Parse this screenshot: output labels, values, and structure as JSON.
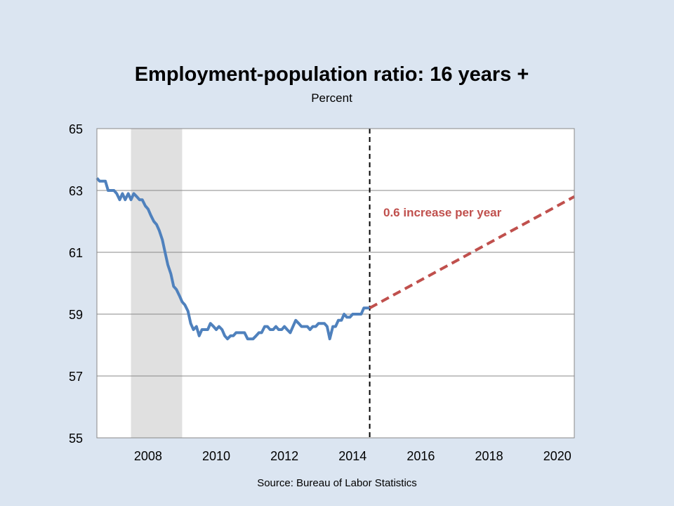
{
  "chart_data": {
    "type": "line",
    "title": "Employment-population ratio: 16 years +",
    "subtitle": "Percent",
    "source": "Source: Bureau of Labor Statistics",
    "xlim": [
      2006.5,
      2020.5
    ],
    "ylim": [
      55,
      65
    ],
    "x_ticks": [
      2008,
      2010,
      2012,
      2014,
      2016,
      2018,
      2020
    ],
    "y_ticks": [
      55,
      57,
      59,
      61,
      63,
      65
    ],
    "grid": "horizontal",
    "recession_shade": {
      "start": 2007.5,
      "end": 2009.0
    },
    "vline": {
      "x": 2014.5
    },
    "series": [
      {
        "color": "#4f81bd",
        "style": "solid",
        "x": [
          2006.5,
          2006.58,
          2006.67,
          2006.75,
          2006.83,
          2006.92,
          2007.0,
          2007.08,
          2007.17,
          2007.25,
          2007.33,
          2007.42,
          2007.5,
          2007.58,
          2007.67,
          2007.75,
          2007.83,
          2007.92,
          2008.0,
          2008.08,
          2008.17,
          2008.25,
          2008.33,
          2008.42,
          2008.5,
          2008.58,
          2008.67,
          2008.75,
          2008.83,
          2008.92,
          2009.0,
          2009.08,
          2009.17,
          2009.25,
          2009.33,
          2009.42,
          2009.5,
          2009.58,
          2009.67,
          2009.75,
          2009.83,
          2009.92,
          2010.0,
          2010.08,
          2010.17,
          2010.25,
          2010.33,
          2010.42,
          2010.5,
          2010.58,
          2010.67,
          2010.75,
          2010.83,
          2010.92,
          2011.0,
          2011.08,
          2011.17,
          2011.25,
          2011.33,
          2011.42,
          2011.5,
          2011.58,
          2011.67,
          2011.75,
          2011.83,
          2011.92,
          2012.0,
          2012.08,
          2012.17,
          2012.25,
          2012.33,
          2012.42,
          2012.5,
          2012.58,
          2012.67,
          2012.75,
          2012.83,
          2012.92,
          2013.0,
          2013.08,
          2013.17,
          2013.25,
          2013.33,
          2013.42,
          2013.5,
          2013.58,
          2013.67,
          2013.75,
          2013.83,
          2013.92,
          2014.0,
          2014.08,
          2014.17,
          2014.25,
          2014.33,
          2014.42,
          2014.5
        ],
        "values": [
          63.4,
          63.3,
          63.3,
          63.3,
          63.0,
          63.0,
          63.0,
          62.9,
          62.7,
          62.9,
          62.7,
          62.9,
          62.7,
          62.9,
          62.8,
          62.7,
          62.7,
          62.5,
          62.4,
          62.2,
          62.0,
          61.9,
          61.7,
          61.4,
          61.0,
          60.6,
          60.3,
          59.9,
          59.8,
          59.6,
          59.4,
          59.3,
          59.1,
          58.7,
          58.5,
          58.6,
          58.3,
          58.5,
          58.5,
          58.5,
          58.7,
          58.6,
          58.5,
          58.6,
          58.5,
          58.3,
          58.2,
          58.3,
          58.3,
          58.4,
          58.4,
          58.4,
          58.4,
          58.2,
          58.2,
          58.2,
          58.3,
          58.4,
          58.4,
          58.6,
          58.6,
          58.5,
          58.5,
          58.6,
          58.5,
          58.5,
          58.6,
          58.5,
          58.4,
          58.6,
          58.8,
          58.7,
          58.6,
          58.6,
          58.6,
          58.5,
          58.6,
          58.6,
          58.7,
          58.7,
          58.7,
          58.6,
          58.2,
          58.6,
          58.6,
          58.8,
          58.8,
          59.0,
          58.9,
          58.9,
          59.0,
          59.0,
          59.0,
          59.0,
          59.2,
          59.2,
          59.2
        ]
      },
      {
        "color": "#c0504d",
        "style": "dashed",
        "x": [
          2014.5,
          2020.5
        ],
        "values": [
          59.2,
          62.8
        ]
      }
    ],
    "annotations": [
      {
        "text": "0.6 increase per year",
        "color": "#c0504d",
        "x": 2014.9,
        "y": 62.3
      }
    ]
  }
}
